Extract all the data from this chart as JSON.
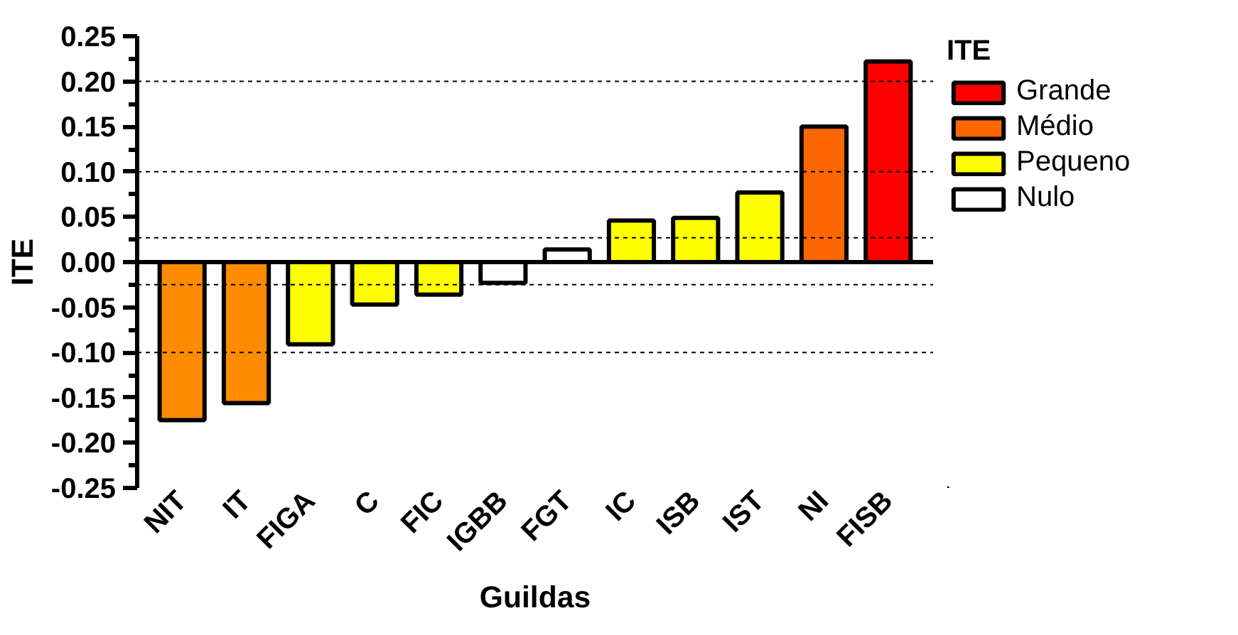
{
  "chart_data": {
    "type": "bar",
    "xlabel": "Guildas",
    "ylabel": "ITE",
    "legend_title": "ITE",
    "categories": [
      "NIT",
      "IT",
      "FIGA",
      "C",
      "FIC",
      "IGBB",
      "FGT",
      "IC",
      "ISB",
      "IST",
      "NI",
      "FISB"
    ],
    "series": [
      {
        "name": "Grande",
        "color": "#ff0000",
        "values": [
          null,
          null,
          null,
          null,
          null,
          null,
          null,
          null,
          null,
          null,
          null,
          0.222
        ]
      },
      {
        "name": "Médio",
        "color": "#ff6600",
        "colors": [
          "#ff8c00",
          "#ff8c00",
          null,
          null,
          null,
          null,
          null,
          null,
          null,
          null,
          "#ff6600",
          null
        ],
        "values": [
          -0.175,
          -0.156,
          null,
          null,
          null,
          null,
          null,
          null,
          null,
          null,
          0.15,
          null
        ]
      },
      {
        "name": "Pequeno",
        "color": "#ffff00",
        "values": [
          null,
          null,
          -0.091,
          -0.047,
          -0.036,
          null,
          null,
          0.046,
          0.049,
          0.077,
          null,
          null
        ]
      },
      {
        "name": "Nulo",
        "color": "#ffffff",
        "values": [
          null,
          null,
          null,
          null,
          null,
          -0.023,
          0.014,
          null,
          null,
          null,
          null,
          null
        ]
      }
    ],
    "ylim": [
      -0.25,
      0.25
    ],
    "yticks": [
      {
        "value": -0.25,
        "label": "-0.25"
      },
      {
        "value": -0.2,
        "label": "-0.20"
      },
      {
        "value": -0.15,
        "label": "-0.15"
      },
      {
        "value": -0.1,
        "label": "-0.10"
      },
      {
        "value": -0.05,
        "label": "-0.05"
      },
      {
        "value": 0,
        "label": "0.00"
      },
      {
        "value": 0.05,
        "label": "0.05"
      },
      {
        "value": 0.1,
        "label": "0.10"
      },
      {
        "value": 0.15,
        "label": "0.15"
      },
      {
        "value": 0.2,
        "label": "0.20"
      },
      {
        "value": 0.25,
        "label": "0.25"
      }
    ],
    "ref_lines": [
      {
        "axis": "y",
        "value": 0.2,
        "line_style": "dotted"
      },
      {
        "axis": "y",
        "value": 0.1,
        "line_style": "dotted"
      },
      {
        "axis": "y",
        "value": 0.027,
        "line_style": "dotted"
      },
      {
        "axis": "y",
        "value": -0.025,
        "line_style": "dotted"
      },
      {
        "axis": "y",
        "value": -0.1,
        "line_style": "dotted"
      }
    ],
    "grid": false,
    "legend": "right"
  }
}
